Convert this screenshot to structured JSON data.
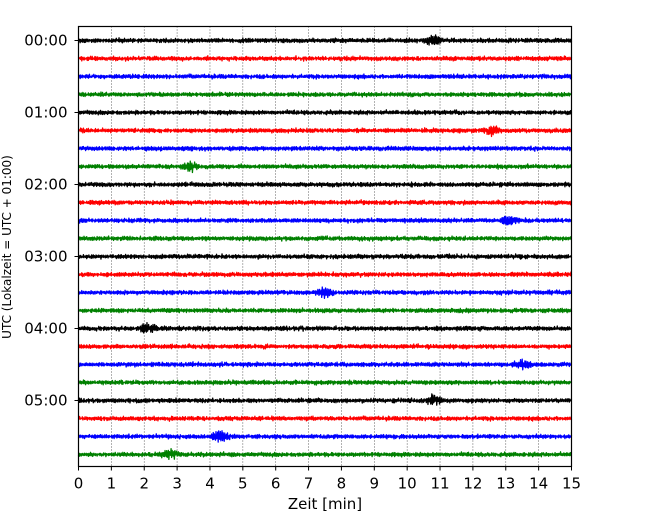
{
  "chart_data": {
    "type": "line",
    "subtype": "helicorder (seismogram drum plot)",
    "xlabel": "Zeit  [min]",
    "ylabel": "UTC (Lokalzeit = UTC + 01:00)",
    "xlim": [
      0,
      15
    ],
    "x_ticks": [
      "0",
      "1",
      "2",
      "3",
      "4",
      "5",
      "6",
      "7",
      "8",
      "9",
      "10",
      "11",
      "12",
      "13",
      "14",
      "15"
    ],
    "y_ticks": [
      "00:00",
      "01:00",
      "02:00",
      "03:00",
      "04:00",
      "05:00"
    ],
    "trace_minutes": 15,
    "trace_count": 24,
    "trace_colors": [
      "#000000",
      "#ff0000",
      "#0000ff",
      "#008000"
    ],
    "grid": "vertical dotted lines at each minute",
    "events": [
      {
        "trace": 0,
        "minute": 10.8
      },
      {
        "trace": 5,
        "minute": 12.6
      },
      {
        "trace": 7,
        "minute": 3.4
      },
      {
        "trace": 10,
        "minute": 13.1
      },
      {
        "trace": 14,
        "minute": 7.5
      },
      {
        "trace": 16,
        "minute": 2.1
      },
      {
        "trace": 18,
        "minute": 13.5
      },
      {
        "trace": 20,
        "minute": 10.8
      },
      {
        "trace": 22,
        "minute": 4.3
      },
      {
        "trace": 23,
        "minute": 2.8
      }
    ]
  }
}
